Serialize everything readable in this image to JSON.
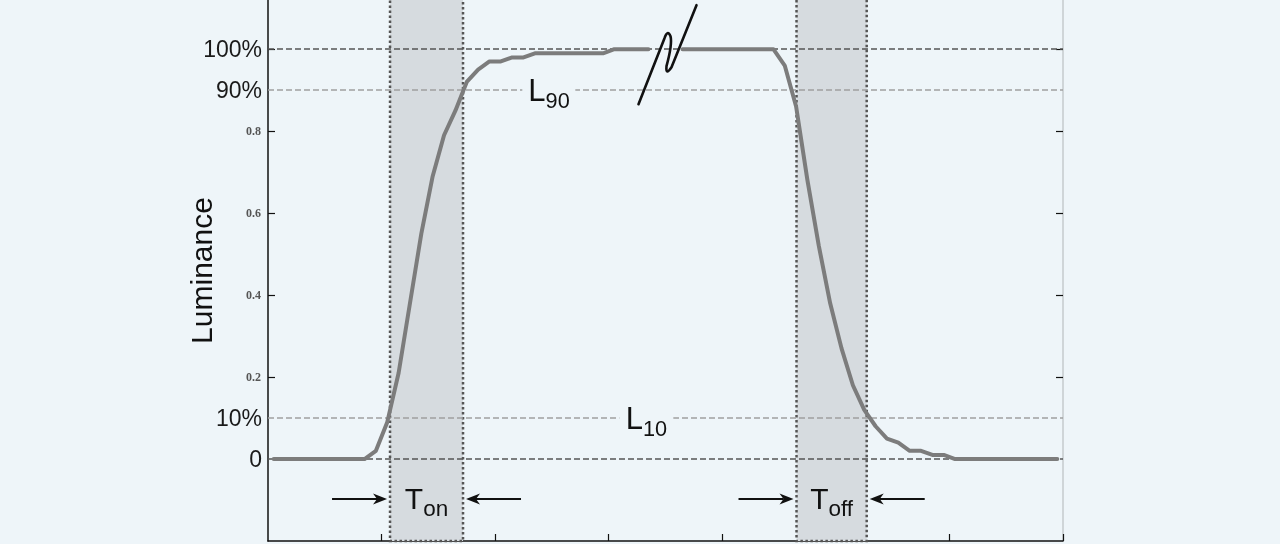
{
  "chart_data": {
    "type": "line",
    "ylabel": "Luminance",
    "color": "#7c7c7c",
    "categories": [
      null,
      null,
      null,
      null,
      null,
      null,
      null,
      null,
      null,
      null,
      null,
      null,
      null,
      null,
      null,
      null,
      null,
      null,
      null,
      null,
      null,
      null,
      null,
      null,
      null,
      null,
      null,
      null,
      null,
      null,
      null,
      null,
      null,
      null,
      null,
      null,
      null,
      null,
      null,
      null,
      null,
      null,
      null,
      null,
      null,
      null,
      null,
      null,
      null,
      null,
      null,
      null,
      null,
      null,
      null,
      null,
      null,
      null,
      null,
      null,
      null,
      null,
      null,
      null,
      null,
      null,
      null,
      null,
      null,
      null
    ],
    "values": [
      0,
      0,
      0,
      0,
      0,
      0,
      0,
      0,
      0,
      0.02,
      0.09,
      0.21,
      0.38,
      0.55,
      0.69,
      0.79,
      0.85,
      0.92,
      0.95,
      0.97,
      0.97,
      0.98,
      0.98,
      0.99,
      0.99,
      0.99,
      0.99,
      0.99,
      0.99,
      0.99,
      1,
      1,
      1,
      1,
      null,
      null,
      1,
      1,
      1,
      1,
      1,
      1,
      1,
      1,
      1,
      0.96,
      0.86,
      0.68,
      0.52,
      0.38,
      0.27,
      0.18,
      0.12,
      0.08,
      0.05,
      0.04,
      0.02,
      0.02,
      0.01,
      0.01,
      0,
      0,
      0,
      0,
      0,
      0,
      0,
      0,
      0,
      0
    ],
    "ylim": [
      -0.2,
      1.12
    ],
    "yticks": [
      0.2,
      0.4,
      0.6,
      0.8,
      {
        "value": 1,
        "label": null
      }
    ],
    "tick_labels": "y",
    "ref_lines": [
      {
        "axis": "y",
        "value": 1,
        "label": "100%",
        "color": "#555555",
        "line_style": "dashed"
      },
      {
        "axis": "y",
        "value": 0.9,
        "label": "90%",
        "color": "#a0a0a0",
        "line_style": "dashed"
      },
      {
        "axis": "y",
        "value": 0.1,
        "label": "10%",
        "color": "#a0a0a0",
        "line_style": "dashed"
      },
      {
        "axis": "y",
        "value": 0,
        "label": "0",
        "color": "#555555",
        "line_style": "dashed"
      }
    ],
    "annotations": [
      {
        "text": "L$_{90}$",
        "y": 0.9
      },
      {
        "text": "L$_{10}$",
        "y": 0.1
      },
      "T$_{on}$",
      "T$_{off}$"
    ]
  }
}
